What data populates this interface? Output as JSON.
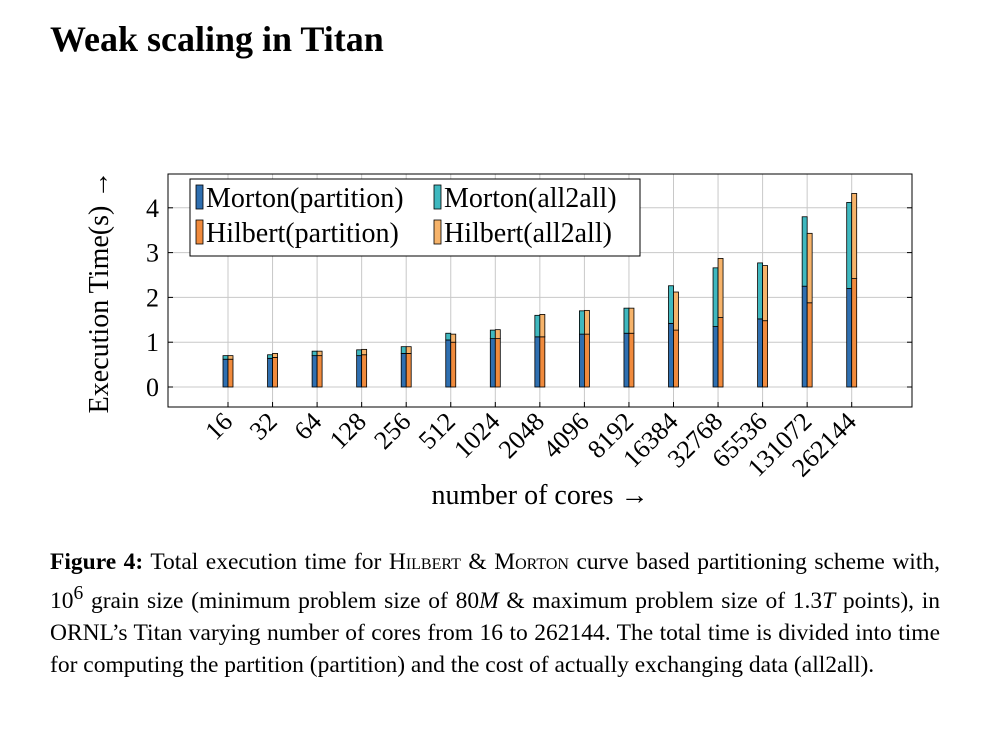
{
  "page": {
    "title": "Weak scaling in Titan"
  },
  "chart_data": {
    "type": "bar",
    "stacked": true,
    "grouped": true,
    "categories": [
      "16",
      "32",
      "64",
      "128",
      "256",
      "512",
      "1024",
      "2048",
      "4096",
      "8192",
      "16384",
      "32768",
      "65536",
      "131072",
      "262144"
    ],
    "xlabel": "number of cores →",
    "ylabel": "Execution Time(s) →",
    "ylim": [
      -0.45,
      4.8
    ],
    "yticks": [
      0,
      1,
      2,
      3,
      4
    ],
    "grid": true,
    "legend_position": "top-left",
    "groups": [
      {
        "name": "Morton",
        "series": [
          {
            "name": "Morton(partition)",
            "color": "#2f6fb0",
            "values": [
              0.62,
              0.64,
              0.7,
              0.7,
              0.75,
              1.05,
              1.08,
              1.12,
              1.18,
              1.2,
              1.42,
              1.35,
              1.52,
              2.25,
              2.2
            ]
          },
          {
            "name": "Morton(all2all)",
            "color": "#3fb8bf",
            "values": [
              0.08,
              0.08,
              0.1,
              0.13,
              0.15,
              0.15,
              0.19,
              0.48,
              0.52,
              0.56,
              0.84,
              1.31,
              1.25,
              1.55,
              1.92
            ]
          }
        ]
      },
      {
        "name": "Hilbert",
        "series": [
          {
            "name": "Hilbert(partition)",
            "color": "#f08a3c",
            "values": [
              0.62,
              0.66,
              0.7,
              0.72,
              0.75,
              1.0,
              1.08,
              1.12,
              1.18,
              1.2,
              1.27,
              1.55,
              1.48,
              1.88,
              2.42
            ]
          },
          {
            "name": "Hilbert(all2all)",
            "color": "#f6b36a",
            "values": [
              0.08,
              0.09,
              0.1,
              0.12,
              0.15,
              0.18,
              0.2,
              0.5,
              0.53,
              0.56,
              0.85,
              1.32,
              1.23,
              1.55,
              1.9
            ]
          }
        ]
      }
    ]
  },
  "caption": {
    "label": "Figure 4:",
    "p1": "Total execution time for",
    "hilbert": "Hilbert",
    "amp1": "&",
    "morton": "Morton",
    "p2": "curve based partitioning scheme with,",
    "grain": "10",
    "grain_exp": "6",
    "p3": "grain size (minimum problem size of",
    "min_num": "80",
    "min_unit": "M",
    "p4": "& maximum problem size of",
    "max_num": "1.3",
    "max_unit": "T",
    "p5": "points), in ORNL’s Titan  varying number of cores from",
    "from_cores": "16",
    "p6": "to",
    "to_cores": "262144",
    "p7": ". The total time is divided into time for computing the partition (partition) and the cost of actually exchanging data (all2all)."
  }
}
